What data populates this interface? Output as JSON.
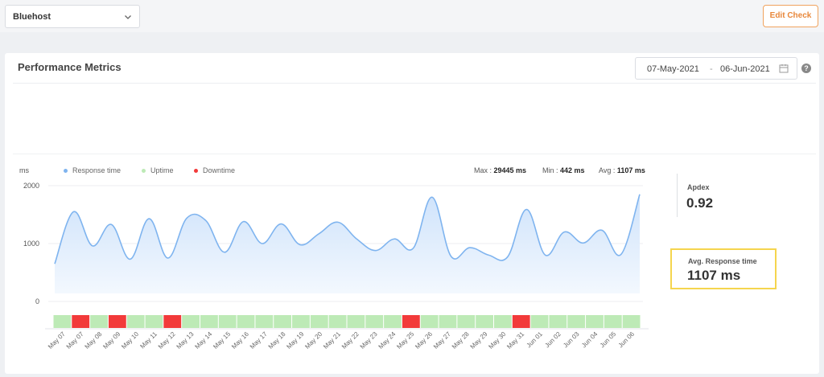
{
  "topbar": {
    "site_select_value": "Bluehost",
    "edit_check_label": "Edit Check"
  },
  "card": {
    "title": "Performance Metrics",
    "date_from": "07-May-2021",
    "date_separator": "-",
    "date_to": "06-Jun-2021",
    "info_icon": "?"
  },
  "legend": {
    "unit": "ms",
    "response_time": "Response time",
    "uptime": "Uptime",
    "downtime": "Downtime"
  },
  "stats": {
    "max_label": "Max :",
    "max_value": "29445 ms",
    "min_label": "Min :",
    "min_value": "442 ms",
    "avg_label": "Avg :",
    "avg_value": "1107 ms"
  },
  "apdex": {
    "label": "Apdex",
    "value": "0.92"
  },
  "avg_response": {
    "label": "Avg. Response time",
    "value": "1107 ms"
  },
  "colors": {
    "line": "#7fb4ef",
    "area": "#dcebfc",
    "uptime": "#bdeab6",
    "downtime": "#f23a3a",
    "response_dot": "#7fb4ef",
    "uptime_dot": "#bdeab6",
    "downtime_dot": "#f23a3a"
  },
  "chart_data": {
    "type": "line",
    "ylabel": "ms",
    "ylim": [
      0,
      2000
    ],
    "y_ticks": [
      "2000",
      "1000",
      "0"
    ],
    "categories": [
      "May 07",
      "May 07",
      "May 08",
      "May 09",
      "May 10",
      "May 11",
      "May 12",
      "May 13",
      "May 14",
      "May 15",
      "May 16",
      "May 17",
      "May 18",
      "May 19",
      "May 20",
      "May 21",
      "May 22",
      "May 23",
      "May 24",
      "May 25",
      "May 26",
      "May 27",
      "May 28",
      "May 29",
      "May 30",
      "May 31",
      "Jun 01",
      "Jun 02",
      "Jun 03",
      "Jun 04",
      "Jun 05",
      "Jun 06"
    ],
    "series": [
      {
        "name": "Response time",
        "values": [
          650,
          1550,
          960,
          1330,
          730,
          1430,
          750,
          1440,
          1400,
          850,
          1380,
          1000,
          1340,
          980,
          1170,
          1370,
          1080,
          880,
          1080,
          920,
          1800,
          780,
          930,
          800,
          770,
          1590,
          800,
          1200,
          1010,
          1230,
          810,
          1850
        ]
      }
    ],
    "status_segments": [
      "up",
      "down",
      "up",
      "down",
      "up",
      "up",
      "down",
      "up",
      "up",
      "up",
      "up",
      "up",
      "up",
      "up",
      "up",
      "up",
      "up",
      "up",
      "up",
      "down",
      "up",
      "up",
      "up",
      "up",
      "up",
      "down",
      "up",
      "up",
      "up",
      "up",
      "up",
      "up"
    ],
    "grid": true,
    "legend_position": "top-left"
  }
}
